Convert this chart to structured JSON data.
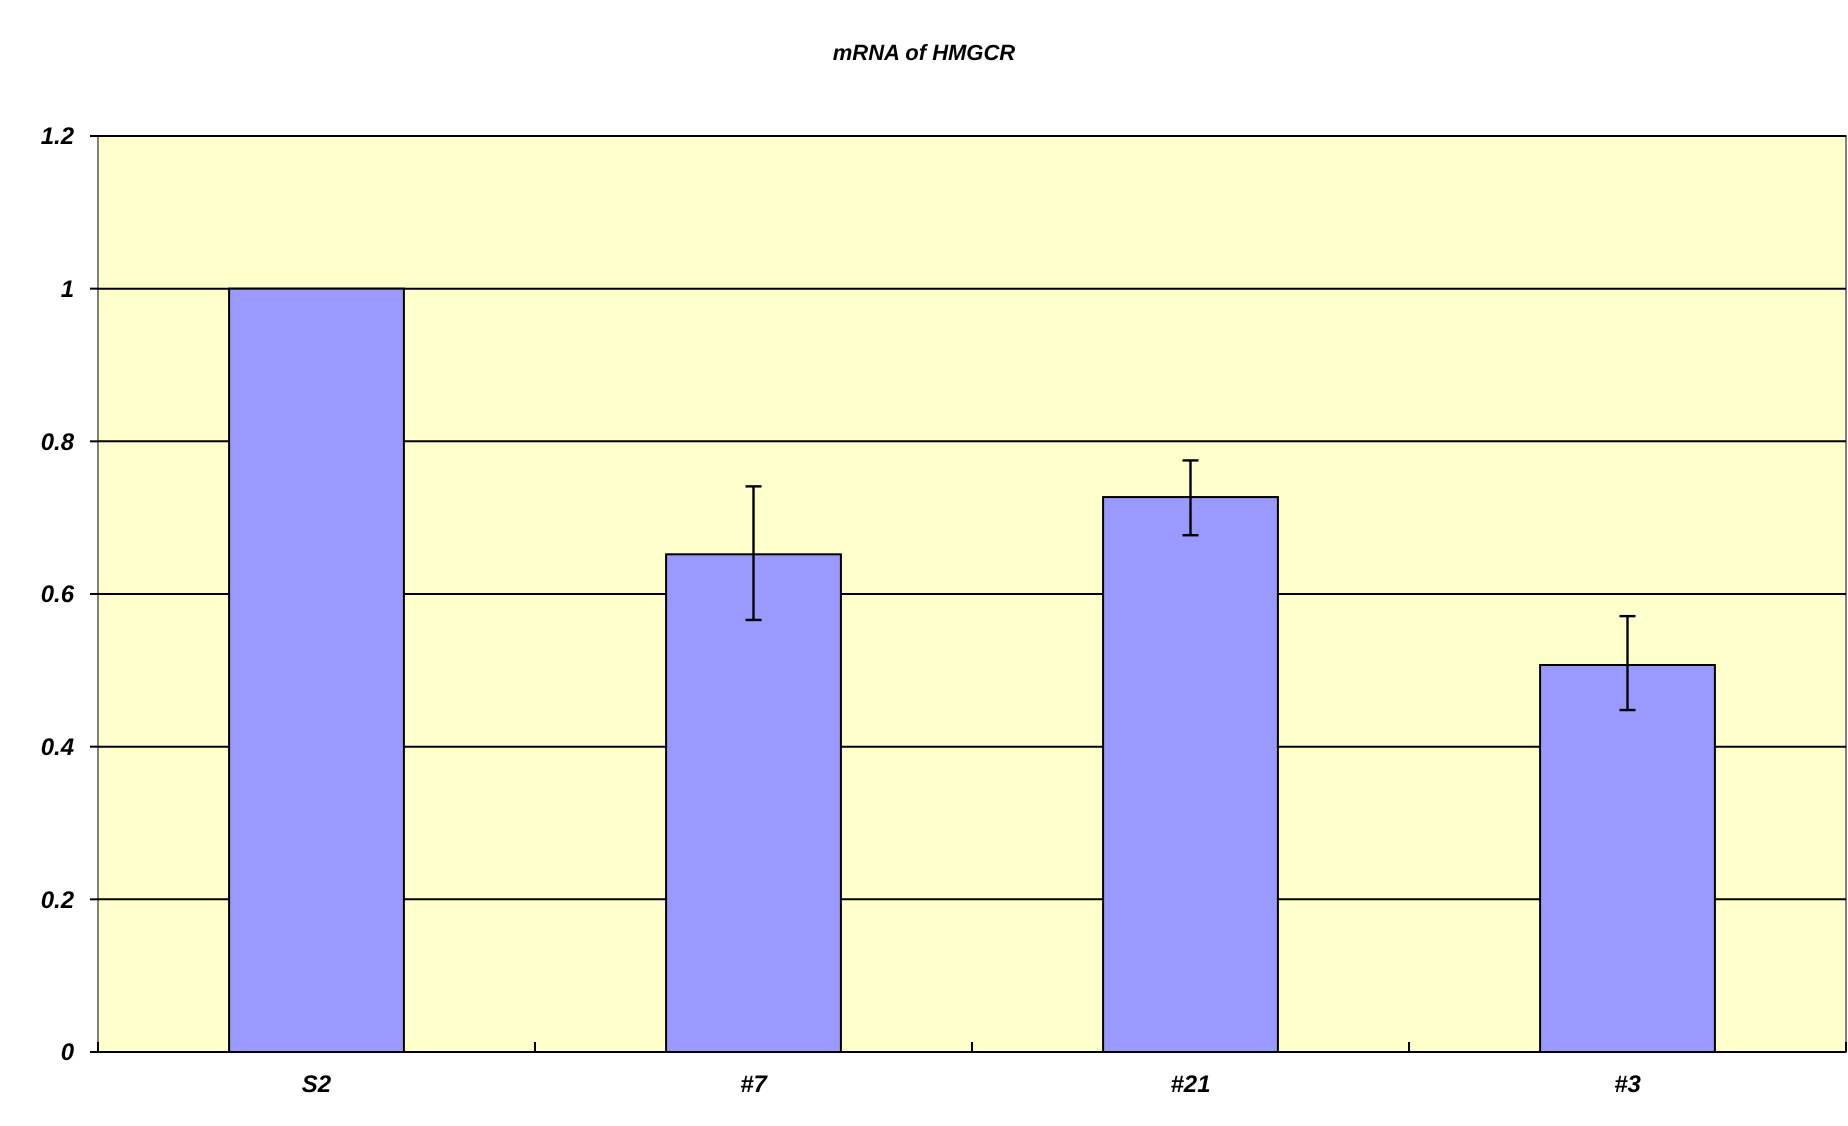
{
  "chart_data": {
    "type": "bar",
    "title": "mRNA of HMGCR",
    "categories": [
      "S2",
      "#7",
      "#21",
      "#3"
    ],
    "values": [
      1.0,
      0.652,
      0.727,
      0.507
    ],
    "errors": [
      null,
      [
        0.566,
        0.741
      ],
      [
        0.677,
        0.775
      ],
      [
        0.448,
        0.571
      ]
    ],
    "color": "#9999ff",
    "ylim": [
      0,
      1.2
    ],
    "yticks": [
      0,
      0.2,
      0.4,
      0.6,
      0.8,
      1,
      1.2
    ],
    "grid": "y"
  }
}
